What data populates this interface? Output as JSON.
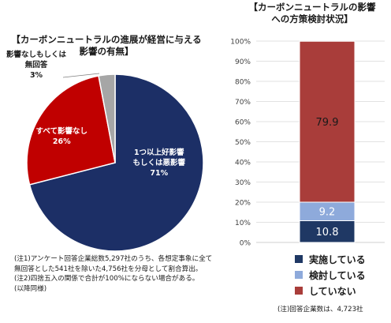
{
  "pie": {
    "title_line1": "【カーボンニュートラルの進展が経営に与える",
    "title_line2": "影響の有無】",
    "notes": [
      "(注1)アンケート回答企業総数5,297社のうち、各想定事象に全て",
      "無回答とした541社を除いた4,756社を分母として割合算出。",
      "(注2)四捨五入の関係で合計が100%にならない場合がある。",
      "(以降同様)"
    ]
  },
  "bar": {
    "title_line1": "【カーボンニュートラルの影響",
    "title_line2": "への方策検討状況】",
    "note": "(注)回答企業数は、4,723社"
  },
  "chart_data": [
    {
      "type": "pie",
      "title": "【カーボンニュートラルの進展が経営に与える影響の有無】",
      "slices": [
        {
          "label_line1": "1つ以上好影響",
          "label_line2": "もしくは悪影響",
          "pct_label": "71%",
          "value": 71,
          "color": "#1c2f66",
          "label_color": "#ffffff"
        },
        {
          "label_line1": "すべて影響なし",
          "label_line2": "",
          "pct_label": "26%",
          "value": 26,
          "color": "#c00000",
          "label_color": "#ffffff"
        },
        {
          "label_line1": "影響なしもしくは",
          "label_line2": "無回答",
          "pct_label": "3%",
          "value": 3,
          "color": "#a6a6a6",
          "label_color": "#1a1a1a"
        }
      ]
    },
    {
      "type": "bar",
      "stacked": true,
      "title": "【カーボンニュートラルの影響への方策検討状況】",
      "ylim": [
        0,
        100
      ],
      "yticks": [
        "0%",
        "10%",
        "20%",
        "30%",
        "40%",
        "50%",
        "60%",
        "70%",
        "80%",
        "90%",
        "100%"
      ],
      "grid": true,
      "series": [
        {
          "name": "実施している",
          "value": 10.8,
          "label": "10.8",
          "color": "#1f3864",
          "label_color": "#ffffff"
        },
        {
          "name": "検討している",
          "value": 9.2,
          "label": "9.2",
          "color": "#8eaadb",
          "label_color": "#ffffff"
        },
        {
          "name": "していない",
          "value": 79.9,
          "label": "79.9",
          "color": "#a93d3a",
          "label_color": "#1a1a1a"
        }
      ]
    }
  ]
}
